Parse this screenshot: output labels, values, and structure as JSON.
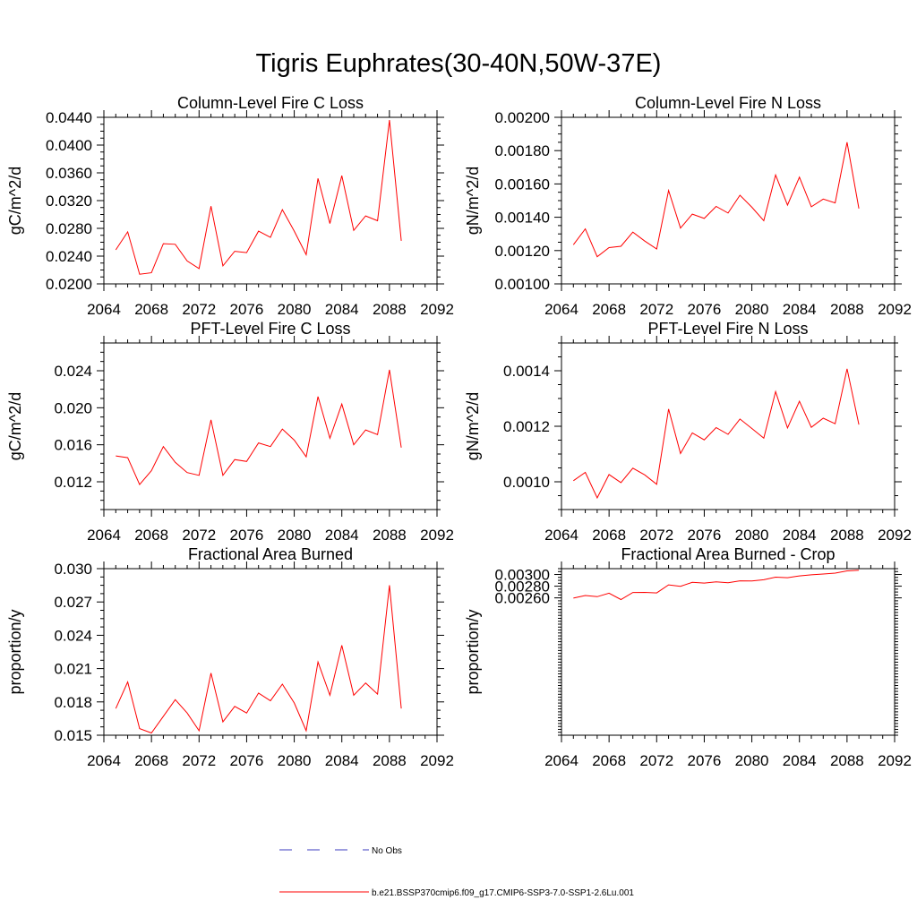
{
  "title": "Tigris Euphrates(30-40N,50W-37E)",
  "legend": {
    "entries": [
      {
        "label": "No Obs",
        "color": "#3b3bbf",
        "style": "dashed"
      },
      {
        "label": "b.e21.BSSP370cmip6.f09_g17.CMIP6-SSP3-7.0-SSP1-2.6Lu.001",
        "color": "#ff0000",
        "style": "solid"
      }
    ]
  },
  "chart_data": [
    {
      "type": "line",
      "title": "Column-Level Fire C Loss",
      "ylabel": "gC/m^2/d",
      "xlim": [
        2064,
        2092
      ],
      "xticks": [
        "2064",
        "2068",
        "2072",
        "2076",
        "2080",
        "2084",
        "2088",
        "2092"
      ],
      "ylim": [
        0.02,
        0.044
      ],
      "yticks": [
        "0.0200",
        "0.0240",
        "0.0280",
        "0.0320",
        "0.0360",
        "0.0400",
        "0.0440"
      ],
      "series": [
        {
          "color": "#ff0000",
          "x": [
            2065,
            2066,
            2067,
            2068,
            2069,
            2070,
            2071,
            2072,
            2073,
            2074,
            2075,
            2076,
            2077,
            2078,
            2079,
            2080,
            2081,
            2082,
            2083,
            2084,
            2085,
            2086,
            2087,
            2088,
            2089
          ],
          "values": [
            0.0249,
            0.0275,
            0.0214,
            0.0216,
            0.0258,
            0.0257,
            0.0233,
            0.0222,
            0.0312,
            0.0226,
            0.0247,
            0.0245,
            0.0276,
            0.0267,
            0.0307,
            0.0276,
            0.0242,
            0.0352,
            0.0287,
            0.0356,
            0.0277,
            0.0298,
            0.0291,
            0.0436,
            0.0262
          ]
        }
      ]
    },
    {
      "type": "line",
      "title": "Column-Level Fire N Loss",
      "ylabel": "gN/m^2/d",
      "xlim": [
        2064,
        2092
      ],
      "xticks": [
        "2064",
        "2068",
        "2072",
        "2076",
        "2080",
        "2084",
        "2088",
        "2092"
      ],
      "ylim": [
        0.001,
        0.002
      ],
      "yticks": [
        "0.00100",
        "0.00120",
        "0.00140",
        "0.00160",
        "0.00180",
        "0.00200"
      ],
      "series": [
        {
          "color": "#ff0000",
          "x": [
            2065,
            2066,
            2067,
            2068,
            2069,
            2070,
            2071,
            2072,
            2073,
            2074,
            2075,
            2076,
            2077,
            2078,
            2079,
            2080,
            2081,
            2082,
            2083,
            2084,
            2085,
            2086,
            2087,
            2088,
            2089
          ],
          "values": [
            0.001235,
            0.00133,
            0.001163,
            0.001218,
            0.001226,
            0.001311,
            0.001257,
            0.001209,
            0.001561,
            0.001335,
            0.001419,
            0.001393,
            0.001465,
            0.001425,
            0.001532,
            0.00146,
            0.001379,
            0.001654,
            0.001473,
            0.001641,
            0.001463,
            0.001509,
            0.001486,
            0.00185,
            0.001452
          ]
        }
      ]
    },
    {
      "type": "line",
      "title": "PFT-Level Fire C Loss",
      "ylabel": "gC/m^2/d",
      "xlim": [
        2064,
        2092
      ],
      "xticks": [
        "2064",
        "2068",
        "2072",
        "2076",
        "2080",
        "2084",
        "2088",
        "2092"
      ],
      "ylim": [
        0.009,
        0.027
      ],
      "yticks": [
        "0.012",
        "0.016",
        "0.020",
        "0.024"
      ],
      "series": [
        {
          "color": "#ff0000",
          "x": [
            2065,
            2066,
            2067,
            2068,
            2069,
            2070,
            2071,
            2072,
            2073,
            2074,
            2075,
            2076,
            2077,
            2078,
            2079,
            2080,
            2081,
            2082,
            2083,
            2084,
            2085,
            2086,
            2087,
            2088,
            2089
          ],
          "values": [
            0.0148,
            0.0146,
            0.0117,
            0.0132,
            0.0158,
            0.0141,
            0.013,
            0.0127,
            0.0187,
            0.0127,
            0.0144,
            0.0142,
            0.0162,
            0.0158,
            0.0177,
            0.0165,
            0.0147,
            0.0212,
            0.0167,
            0.0204,
            0.016,
            0.0176,
            0.0171,
            0.0241,
            0.0157
          ]
        }
      ]
    },
    {
      "type": "line",
      "title": "PFT-Level Fire N Loss",
      "ylabel": "gN/m^2/d",
      "xlim": [
        2064,
        2092
      ],
      "xticks": [
        "2064",
        "2068",
        "2072",
        "2076",
        "2080",
        "2084",
        "2088",
        "2092"
      ],
      "ylim": [
        0.0009,
        0.0015
      ],
      "yticks": [
        "0.0010",
        "0.0012",
        "0.0014"
      ],
      "series": [
        {
          "color": "#ff0000",
          "x": [
            2065,
            2066,
            2067,
            2068,
            2069,
            2070,
            2071,
            2072,
            2073,
            2074,
            2075,
            2076,
            2077,
            2078,
            2079,
            2080,
            2081,
            2082,
            2083,
            2084,
            2085,
            2086,
            2087,
            2088,
            2089
          ],
          "values": [
            0.001004,
            0.001034,
            0.000942,
            0.001026,
            0.000997,
            0.001049,
            0.001025,
            0.000991,
            0.001262,
            0.001102,
            0.001176,
            0.001151,
            0.001195,
            0.001171,
            0.001226,
            0.001192,
            0.001157,
            0.001325,
            0.001194,
            0.00129,
            0.001196,
            0.001229,
            0.001209,
            0.001407,
            0.001206
          ]
        }
      ]
    },
    {
      "type": "line",
      "title": "Fractional Area Burned",
      "ylabel": "proportion/y",
      "xlim": [
        2064,
        2092
      ],
      "xticks": [
        "2064",
        "2068",
        "2072",
        "2076",
        "2080",
        "2084",
        "2088",
        "2092"
      ],
      "ylim": [
        0.015,
        0.03
      ],
      "yticks": [
        "0.015",
        "0.018",
        "0.021",
        "0.024",
        "0.027",
        "0.030"
      ],
      "series": [
        {
          "color": "#ff0000",
          "x": [
            2065,
            2066,
            2067,
            2068,
            2069,
            2070,
            2071,
            2072,
            2073,
            2074,
            2075,
            2076,
            2077,
            2078,
            2079,
            2080,
            2081,
            2082,
            2083,
            2084,
            2085,
            2086,
            2087,
            2088,
            2089
          ],
          "values": [
            0.0174,
            0.0198,
            0.0156,
            0.0152,
            0.0167,
            0.0182,
            0.017,
            0.0154,
            0.0206,
            0.0162,
            0.0176,
            0.017,
            0.0188,
            0.0181,
            0.0196,
            0.0179,
            0.0154,
            0.0216,
            0.0186,
            0.0231,
            0.0186,
            0.0197,
            0.0187,
            0.0285,
            0.0174
          ]
        }
      ]
    },
    {
      "type": "line",
      "title": "Fractional Area Burned - Crop",
      "ylabel": "proportion/y",
      "xlim": [
        2064,
        2092
      ],
      "xticks": [
        "2064",
        "2068",
        "2072",
        "2076",
        "2080",
        "2084",
        "2088",
        "2092"
      ],
      "ylim": [
        0.00025,
        0.0031
      ],
      "yticks": [
        "0.00260",
        "0.00280",
        "0.00300"
      ],
      "series": [
        {
          "color": "#ff0000",
          "x": [
            2065,
            2066,
            2067,
            2068,
            2069,
            2070,
            2071,
            2072,
            2073,
            2074,
            2075,
            2076,
            2077,
            2078,
            2079,
            2080,
            2081,
            2082,
            2083,
            2084,
            2085,
            2086,
            2087,
            2088,
            2089
          ],
          "values": [
            0.002596,
            0.002641,
            0.002621,
            0.00268,
            0.002571,
            0.002693,
            0.002694,
            0.002685,
            0.002823,
            0.002798,
            0.002866,
            0.002854,
            0.002875,
            0.00286,
            0.002892,
            0.00289,
            0.00291,
            0.002954,
            0.002946,
            0.002976,
            0.002995,
            0.003008,
            0.003024,
            0.003062,
            0.003072
          ]
        }
      ]
    }
  ]
}
